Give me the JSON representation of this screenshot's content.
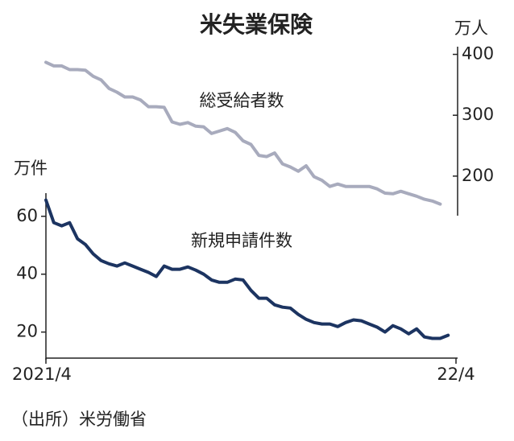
{
  "chart_data": {
    "type": "line",
    "title": "米失業保険",
    "ylabel": "万件",
    "y2label": "万人",
    "xlim": [
      0,
      52
    ],
    "xticks": [
      {
        "value": 0,
        "label": "2021/4"
      },
      {
        "value": 52,
        "label": "22/4"
      }
    ],
    "ylim": [
      11,
      68
    ],
    "yticks": [
      20,
      40,
      60
    ],
    "y2lim": [
      135,
      410
    ],
    "y2ticks": [
      200,
      300,
      400
    ],
    "series": [
      {
        "name": "総受給者数",
        "color": "#a8abbd",
        "axis": "y2",
        "values": [
          387,
          381,
          381,
          375,
          375,
          374,
          364,
          358,
          344,
          338,
          330,
          330,
          325,
          314,
          314,
          313,
          289,
          285,
          288,
          282,
          281,
          270,
          274,
          278,
          272,
          258,
          252,
          234,
          232,
          238,
          220,
          215,
          208,
          217,
          199,
          193,
          183,
          187,
          183,
          183,
          183,
          183,
          179,
          172,
          171,
          175,
          171,
          167,
          162,
          159,
          154
        ]
      },
      {
        "name": "新規申請件数",
        "color": "#1c3461",
        "axis": "y",
        "values": [
          65.6,
          57.8,
          56.7,
          57.8,
          52.2,
          50.3,
          47,
          44.7,
          43.6,
          42.8,
          43.9,
          42.8,
          41.7,
          40.6,
          39.2,
          42.8,
          41.7,
          41.7,
          42.5,
          41.4,
          40,
          38,
          37.2,
          37.2,
          38.3,
          38,
          34.4,
          31.7,
          31.7,
          29.4,
          28.6,
          28.3,
          26.1,
          24.4,
          23.3,
          22.8,
          22.8,
          21.9,
          23.3,
          24.2,
          23.9,
          22.8,
          21.7,
          20,
          22.2,
          21.1,
          19.4,
          21.1,
          18.3,
          17.8,
          17.8,
          18.9
        ]
      }
    ],
    "source": "（出所）米労働省"
  }
}
